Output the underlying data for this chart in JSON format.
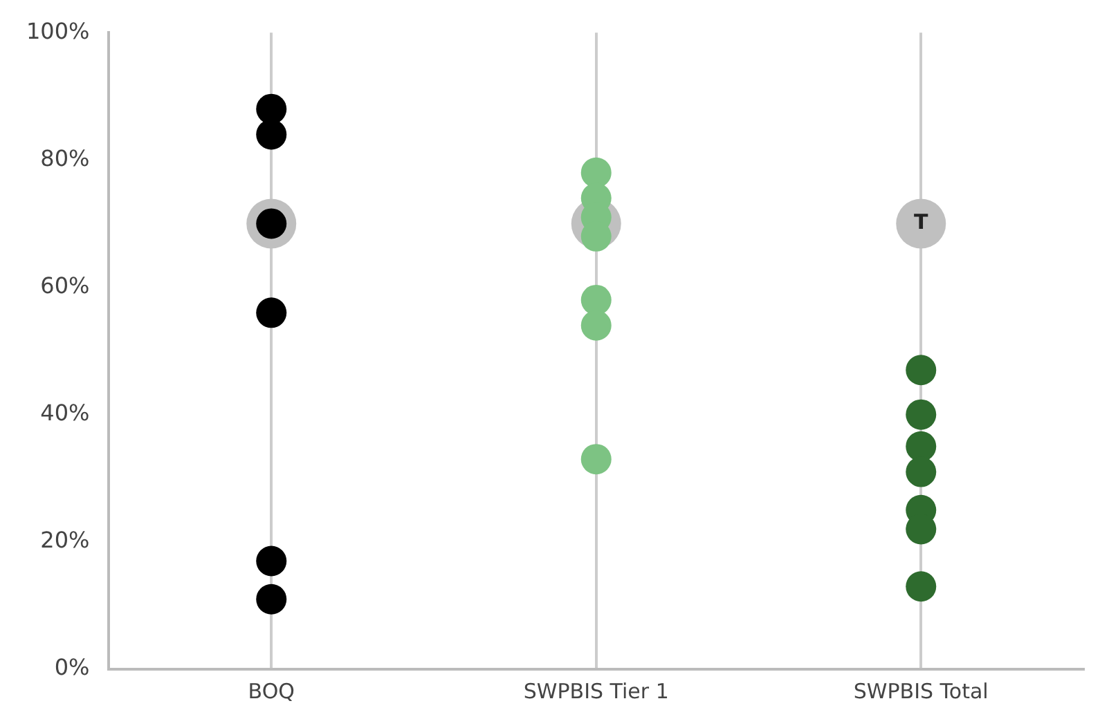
{
  "chart_data": {
    "type": "scatter",
    "categories": [
      "BOQ",
      "SWPBIS Tier 1",
      "SWPBIS Total"
    ],
    "ylim": [
      0,
      100
    ],
    "yticks": [
      {
        "value": 0,
        "label": "0%"
      },
      {
        "value": 20,
        "label": "20%"
      },
      {
        "value": 40,
        "label": "40%"
      },
      {
        "value": 60,
        "label": "60%"
      },
      {
        "value": 80,
        "label": "80%"
      },
      {
        "value": 100,
        "label": "100%"
      }
    ],
    "grid": "x",
    "legend": false,
    "marker": "circle",
    "series": [
      {
        "color": "#c0c0c0",
        "x": [
          "BOQ",
          "SWPBIS Tier 1",
          "SWPBIS Total"
        ],
        "values": [
          70,
          70,
          70
        ]
      },
      {
        "color": "#000000",
        "x": [
          "BOQ",
          "BOQ",
          "BOQ",
          "BOQ",
          "BOQ",
          "BOQ"
        ],
        "values": [
          88,
          84,
          70,
          56,
          17,
          11
        ]
      },
      {
        "color": "#7dc383",
        "x": [
          "SWPBIS Tier 1",
          "SWPBIS Tier 1",
          "SWPBIS Tier 1",
          "SWPBIS Tier 1",
          "SWPBIS Tier 1",
          "SWPBIS Tier 1",
          "SWPBIS Tier 1"
        ],
        "values": [
          78,
          74,
          71,
          68,
          58,
          54,
          33
        ]
      },
      {
        "color": "#2e6b2e",
        "x": [
          "SWPBIS Total",
          "SWPBIS Total",
          "SWPBIS Total",
          "SWPBIS Total",
          "SWPBIS Total",
          "SWPBIS Total",
          "SWPBIS Total"
        ],
        "values": [
          47,
          40,
          35,
          31,
          25,
          22,
          13
        ]
      }
    ],
    "annotations": [
      {
        "text": "T",
        "x": "SWPBIS Total",
        "y": 70
      }
    ]
  }
}
